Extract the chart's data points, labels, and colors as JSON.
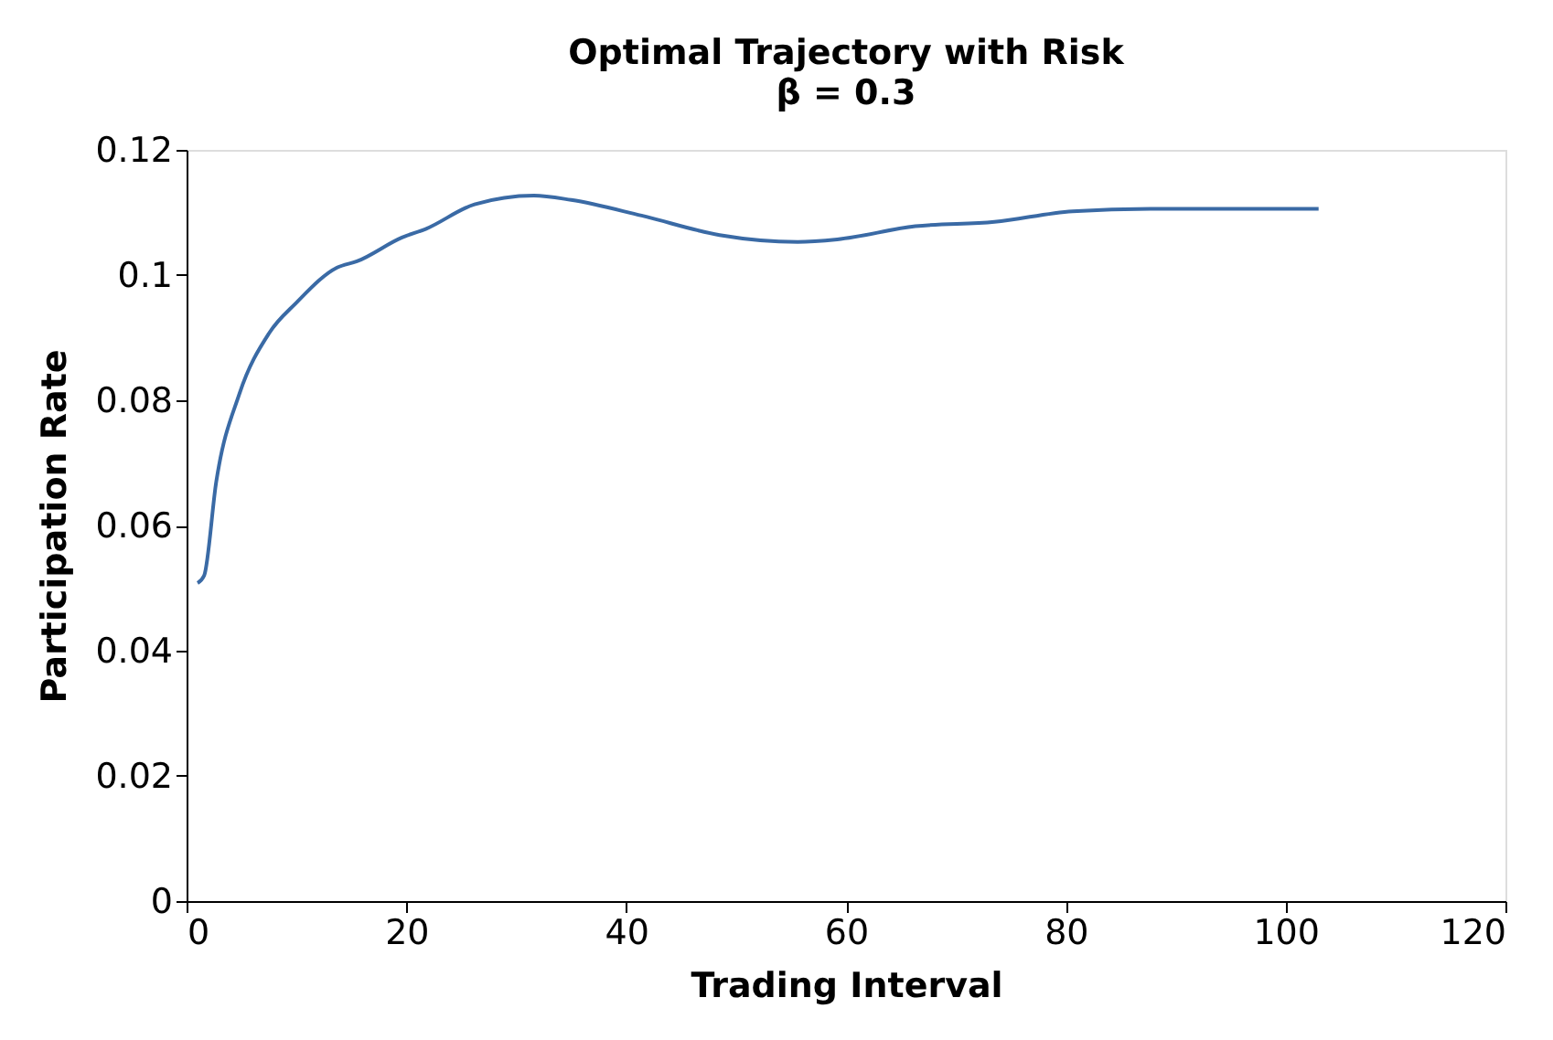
{
  "chart_data": {
    "type": "line",
    "title": "Optimal Trajectory with Risk",
    "subtitle": "β = 0.3",
    "xlabel": "Trading Interval",
    "ylabel": "Participation Rate",
    "x": [
      1,
      1.6,
      2.7,
      4.8,
      7.5,
      10,
      13.7,
      15.5,
      19.6,
      21.8,
      26.2,
      31.6,
      35,
      41.4,
      48.5,
      55.6,
      59.2,
      66.3,
      73.5,
      80.6,
      87.7,
      103
    ],
    "series": [
      {
        "color": "#3a6aa5",
        "values": [
          0.0508,
          0.052,
          0.067,
          0.081,
          0.0907,
          0.0956,
          0.1012,
          0.1022,
          0.106,
          0.1074,
          0.1113,
          0.1127,
          0.112,
          0.1095,
          0.1064,
          0.1053,
          0.1057,
          0.1078,
          0.1085,
          0.1102,
          0.1106,
          0.1106
        ]
      }
    ],
    "xlim": [
      0,
      120
    ],
    "xticks": [
      0,
      20,
      40,
      60,
      80,
      100,
      120
    ],
    "ylim": [
      0,
      0.12
    ],
    "yticks": [
      0,
      0.02,
      0.04,
      0.06,
      0.08,
      0.1,
      0.12
    ],
    "grid": false,
    "marker": "none",
    "line_style": "solid"
  }
}
